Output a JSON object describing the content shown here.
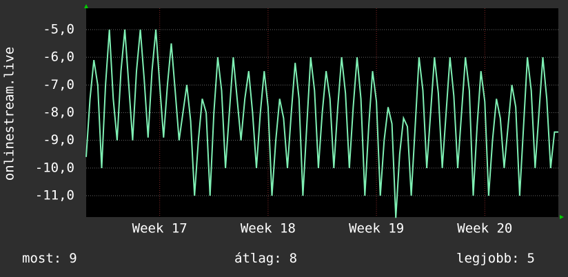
{
  "chart_data": {
    "type": "line",
    "y_label": "onlinestream.live",
    "categories": [
      null,
      null,
      null,
      null,
      null,
      null,
      null,
      null,
      null,
      null,
      null,
      null,
      null,
      null,
      null,
      null,
      null,
      null,
      null,
      "Week 17",
      null,
      null,
      null,
      null,
      null,
      null,
      null,
      null,
      null,
      null,
      null,
      null,
      null,
      null,
      null,
      null,
      null,
      null,
      null,
      null,
      null,
      null,
      null,
      null,
      null,
      null,
      null,
      "Week 18",
      null,
      null,
      null,
      null,
      null,
      null,
      null,
      null,
      null,
      null,
      null,
      null,
      null,
      null,
      null,
      null,
      null,
      null,
      null,
      null,
      null,
      null,
      null,
      null,
      null,
      null,
      null,
      "Week 19",
      null,
      null,
      null,
      null,
      null,
      null,
      null,
      null,
      null,
      null,
      null,
      null,
      null,
      null,
      null,
      null,
      null,
      null,
      null,
      null,
      null,
      null,
      null,
      null,
      null,
      null,
      null,
      "Week 20",
      null,
      null,
      null,
      null,
      null,
      null,
      null,
      null,
      null,
      null,
      null,
      null,
      null,
      null,
      null,
      null,
      null,
      null,
      null
    ],
    "values": [
      -9.6,
      -7.5,
      -6.1,
      -7.0,
      -10,
      -7,
      -5,
      -7.5,
      -9,
      -6.5,
      -5,
      -7,
      -9,
      -6.5,
      -5,
      -6.8,
      -8.9,
      -6.5,
      -5,
      -7,
      -8.9,
      -7,
      -5.5,
      -7.2,
      -9,
      -8,
      -7,
      -8.3,
      -11,
      -9,
      -7.5,
      -8,
      -11,
      -8,
      -6,
      -7.2,
      -10,
      -8,
      -6,
      -7.5,
      -9,
      -7.5,
      -6.5,
      -8,
      -10,
      -8,
      -6.5,
      -7.8,
      -11,
      -9,
      -7.5,
      -8.2,
      -10,
      -8,
      -6.2,
      -7.5,
      -11,
      -8.5,
      -6,
      -7.2,
      -10,
      -8,
      -6.5,
      -7.5,
      -10,
      -7.8,
      -6,
      -7.3,
      -10,
      -7.8,
      -6,
      -7.5,
      -11,
      -8.5,
      -6.5,
      -7.6,
      -11,
      -9,
      -7.8,
      -8.4,
      -11.8,
      -9.5,
      -8.2,
      -8.5,
      -11,
      -8.5,
      -6,
      -7.2,
      -10,
      -8,
      -6,
      -7.3,
      -10,
      -8,
      -6,
      -7.4,
      -10,
      -8,
      -6,
      -7.2,
      -11,
      -8.5,
      -6.5,
      -7.6,
      -11,
      -9,
      -7.5,
      -8.2,
      -10,
      -8.5,
      -7,
      -7.8,
      -11,
      -8.5,
      -6,
      -7.2,
      -10,
      -8,
      -6,
      -7.5,
      -10,
      -8.7,
      -8.7
    ],
    "color": "#7ff0b4",
    "ylim": [
      -11.77,
      -4.23
    ],
    "yticks": [
      {
        "value": -11,
        "label": "-11,0"
      },
      {
        "value": -10,
        "label": "-10,0"
      },
      {
        "value": -9,
        "label": "-9,0"
      },
      {
        "value": -8,
        "label": "-8,0"
      },
      {
        "value": -7,
        "label": "-7,0"
      },
      {
        "value": -6,
        "label": "-6,0"
      },
      {
        "value": -5,
        "label": "-5,0"
      }
    ],
    "grid": true,
    "stats": [
      {
        "label": "most:",
        "value": 9
      },
      {
        "label": "átlag:",
        "value": 8
      },
      {
        "label": "legjobb:",
        "value": 5
      }
    ]
  }
}
